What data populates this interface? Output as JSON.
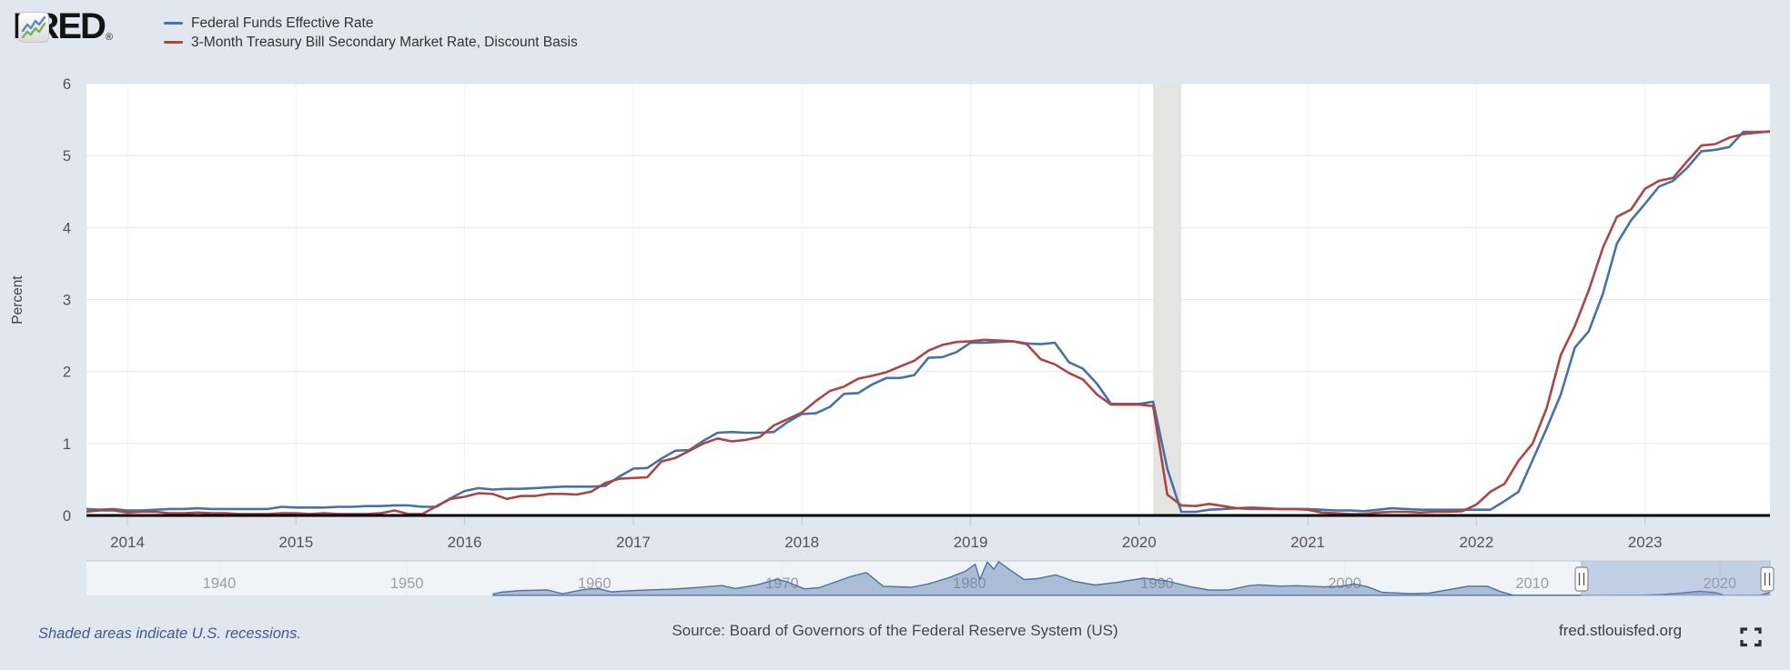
{
  "header": {
    "logo_text": "FRED",
    "logo_reg": "®",
    "legend": [
      {
        "label": "Federal Funds Effective Rate",
        "color": "#4572a7"
      },
      {
        "label": "3-Month Treasury Bill Secondary Market Rate, Discount Basis",
        "color": "#aa4643"
      }
    ]
  },
  "chart_data": {
    "type": "line",
    "title": "",
    "xlabel": "",
    "ylabel": "Percent",
    "ylim": [
      0,
      6
    ],
    "y_ticks": [
      0,
      1,
      2,
      3,
      4,
      5,
      6
    ],
    "x_ticks": [
      2014,
      2015,
      2016,
      2017,
      2018,
      2019,
      2020,
      2021,
      2022,
      2023
    ],
    "x_range_decimal_years": [
      2013.76,
      2023.76
    ],
    "grid": true,
    "legend_position": "top-left",
    "frequency": "monthly",
    "series_start": "2013-09",
    "series": [
      {
        "name": "Federal Funds Effective Rate",
        "color": "#4572a7",
        "values": [
          0.08,
          0.09,
          0.08,
          0.09,
          0.07,
          0.07,
          0.08,
          0.09,
          0.09,
          0.1,
          0.09,
          0.09,
          0.09,
          0.09,
          0.09,
          0.12,
          0.11,
          0.11,
          0.11,
          0.12,
          0.12,
          0.13,
          0.13,
          0.14,
          0.14,
          0.12,
          0.12,
          0.24,
          0.34,
          0.38,
          0.36,
          0.37,
          0.37,
          0.38,
          0.39,
          0.4,
          0.4,
          0.4,
          0.41,
          0.54,
          0.65,
          0.66,
          0.79,
          0.9,
          0.91,
          1.04,
          1.15,
          1.16,
          1.15,
          1.15,
          1.16,
          1.3,
          1.41,
          1.42,
          1.51,
          1.69,
          1.7,
          1.82,
          1.91,
          1.91,
          1.95,
          2.19,
          2.2,
          2.27,
          2.4,
          2.4,
          2.41,
          2.42,
          2.39,
          2.38,
          2.4,
          2.13,
          2.04,
          1.83,
          1.55,
          1.55,
          1.55,
          1.58,
          0.65,
          0.05,
          0.05,
          0.08,
          0.09,
          0.1,
          0.09,
          0.09,
          0.09,
          0.09,
          0.09,
          0.08,
          0.07,
          0.07,
          0.06,
          0.08,
          0.1,
          0.09,
          0.08,
          0.08,
          0.08,
          0.08,
          0.08,
          0.08,
          0.2,
          0.33,
          0.77,
          1.21,
          1.68,
          2.33,
          2.56,
          3.08,
          3.78,
          4.1,
          4.33,
          4.57,
          4.65,
          4.83,
          5.06,
          5.08,
          5.12,
          5.33,
          5.33,
          5.33
        ]
      },
      {
        "name": "3-Month Treasury Bill Secondary Market Rate, Discount Basis",
        "color": "#aa4643",
        "values": [
          0.02,
          0.05,
          0.07,
          0.07,
          0.04,
          0.05,
          0.05,
          0.03,
          0.03,
          0.04,
          0.03,
          0.03,
          0.02,
          0.02,
          0.02,
          0.03,
          0.03,
          0.02,
          0.03,
          0.02,
          0.02,
          0.02,
          0.03,
          0.07,
          0.02,
          0.02,
          0.13,
          0.23,
          0.26,
          0.31,
          0.3,
          0.23,
          0.27,
          0.27,
          0.3,
          0.3,
          0.29,
          0.33,
          0.45,
          0.51,
          0.52,
          0.53,
          0.75,
          0.8,
          0.9,
          1.0,
          1.07,
          1.03,
          1.05,
          1.09,
          1.25,
          1.34,
          1.43,
          1.59,
          1.73,
          1.79,
          1.9,
          1.94,
          1.99,
          2.07,
          2.15,
          2.29,
          2.37,
          2.41,
          2.42,
          2.44,
          2.43,
          2.42,
          2.38,
          2.17,
          2.1,
          1.98,
          1.89,
          1.68,
          1.54,
          1.54,
          1.54,
          1.52,
          0.29,
          0.14,
          0.13,
          0.16,
          0.13,
          0.1,
          0.11,
          0.1,
          0.09,
          0.09,
          0.08,
          0.04,
          0.03,
          0.02,
          0.02,
          0.04,
          0.05,
          0.05,
          0.04,
          0.05,
          0.05,
          0.06,
          0.15,
          0.33,
          0.44,
          0.76,
          1.0,
          1.49,
          2.23,
          2.63,
          3.13,
          3.72,
          4.15,
          4.25,
          4.54,
          4.65,
          4.69,
          4.92,
          5.14,
          5.16,
          5.25,
          5.3,
          5.32,
          5.34
        ]
      }
    ],
    "recessions": [
      {
        "start": 2020.0833,
        "end": 2020.25
      }
    ]
  },
  "navigator": {
    "decade_years": [
      1940,
      1950,
      1960,
      1970,
      1980,
      1990,
      2000,
      2010,
      2020
    ],
    "decade_labels": [
      "1940",
      "1950",
      "1960",
      "1970",
      "1980",
      "1990",
      "2000",
      "2010",
      "2020"
    ],
    "selection": {
      "start_year": 2013.75,
      "end_year": 2023.9
    },
    "mini_series": {
      "name": "Federal Funds Effective Rate, full history",
      "points": [
        [
          1954.6,
          0.8
        ],
        [
          1955,
          1.8
        ],
        [
          1956,
          2.7
        ],
        [
          1957.5,
          3.1
        ],
        [
          1958.3,
          0.9
        ],
        [
          1959.5,
          3.5
        ],
        [
          1960.2,
          3.9
        ],
        [
          1960.9,
          2.0
        ],
        [
          1962,
          2.7
        ],
        [
          1963,
          3.2
        ],
        [
          1964,
          3.5
        ],
        [
          1965,
          4.1
        ],
        [
          1966.8,
          5.6
        ],
        [
          1967.5,
          3.9
        ],
        [
          1968.7,
          6.0
        ],
        [
          1969.7,
          9.1
        ],
        [
          1970.2,
          8.0
        ],
        [
          1971.2,
          3.7
        ],
        [
          1972,
          4.4
        ],
        [
          1973.7,
          10.8
        ],
        [
          1974.5,
          12.9
        ],
        [
          1975.4,
          5.2
        ],
        [
          1976.9,
          4.6
        ],
        [
          1977.8,
          6.5
        ],
        [
          1978.9,
          10.0
        ],
        [
          1979.8,
          13.8
        ],
        [
          1980.3,
          17.6
        ],
        [
          1980.55,
          9.0
        ],
        [
          1980.95,
          18.9
        ],
        [
          1981.3,
          14.7
        ],
        [
          1981.55,
          19.1
        ],
        [
          1982.1,
          14.8
        ],
        [
          1982.9,
          9.0
        ],
        [
          1983.6,
          9.5
        ],
        [
          1984.6,
          11.6
        ],
        [
          1985.6,
          7.9
        ],
        [
          1986.7,
          5.9
        ],
        [
          1987.8,
          7.3
        ],
        [
          1989.3,
          9.8
        ],
        [
          1990.5,
          8.2
        ],
        [
          1991.8,
          4.8
        ],
        [
          1992.8,
          3.0
        ],
        [
          1993.8,
          3.0
        ],
        [
          1994.9,
          5.5
        ],
        [
          1995.4,
          6.0
        ],
        [
          1996.5,
          5.3
        ],
        [
          1997.5,
          5.5
        ],
        [
          1998.9,
          4.8
        ],
        [
          1999.9,
          5.3
        ],
        [
          2000.5,
          6.5
        ],
        [
          2001.2,
          5.0
        ],
        [
          2002,
          1.75
        ],
        [
          2003.5,
          1.0
        ],
        [
          2004.5,
          1.3
        ],
        [
          2005.5,
          3.2
        ],
        [
          2006.6,
          5.25
        ],
        [
          2007.6,
          5.25
        ],
        [
          2008.3,
          2.2
        ],
        [
          2008.95,
          0.2
        ],
        [
          2010,
          0.17
        ],
        [
          2012,
          0.14
        ],
        [
          2014,
          0.09
        ],
        [
          2015.9,
          0.2
        ],
        [
          2016.9,
          0.55
        ],
        [
          2017.9,
          1.3
        ],
        [
          2018.95,
          2.4
        ],
        [
          2019.8,
          1.6
        ],
        [
          2020.25,
          0.05
        ],
        [
          2021.5,
          0.08
        ],
        [
          2022.2,
          0.2
        ],
        [
          2022.6,
          1.6
        ],
        [
          2022.95,
          4.1
        ],
        [
          2023.6,
          5.2
        ],
        [
          2023.85,
          5.33
        ]
      ]
    }
  },
  "footer": {
    "note": "Shaded areas indicate U.S. recessions.",
    "source": "Source: Board of Governors of the Federal Reserve System (US)",
    "site": "fred.stlouisfed.org"
  },
  "colors": {
    "background": "#e0e7ee",
    "plot_background": "#ffffff",
    "gridline": "#e6e6e6",
    "year_gridline": "#f1f3f4",
    "axis_line": "#000000",
    "recession_band": "#e4e4e2",
    "tick_text": "#545454",
    "nav_label": "#9e9e9e",
    "nav_area_stroke": "#4a73a3",
    "nav_area_fill": "rgba(86,121,172,0.45)",
    "nav_mask": "rgba(255,255,255,0.5)",
    "nav_selection_fill": "rgba(125,152,205,0.30)",
    "nav_selection_stroke": "#a4b5d6",
    "logo_icon_blue": "#5b8cc8",
    "logo_icon_green": "#77b255"
  }
}
